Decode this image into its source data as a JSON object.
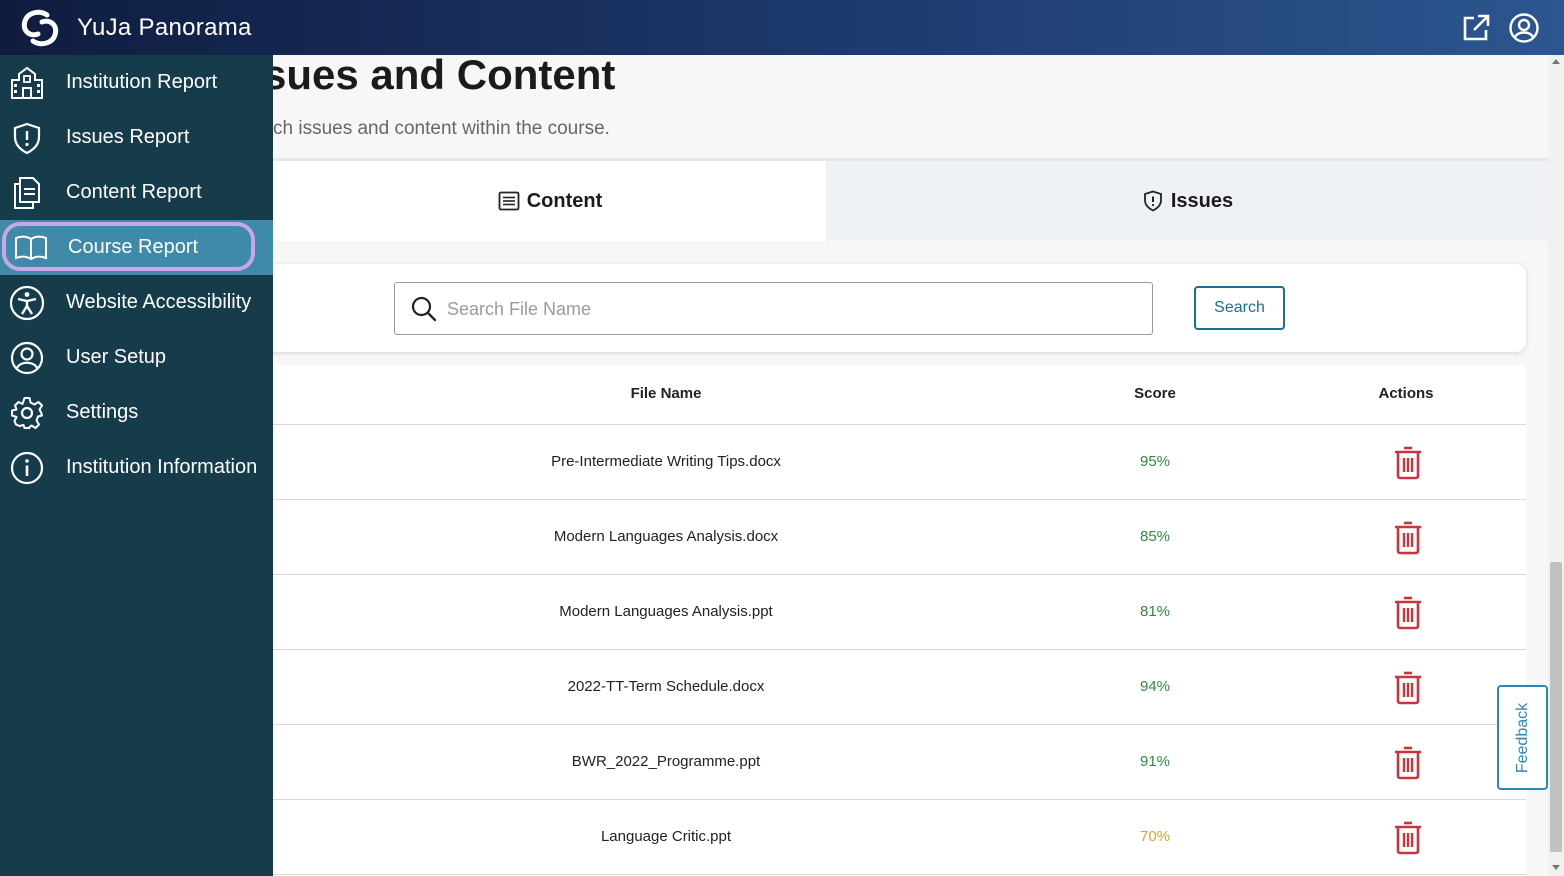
{
  "header": {
    "app_title": "YuJa Panorama",
    "logo_icon": "yuja-logo-icon",
    "external_link_icon": "external-link-icon",
    "account_icon": "user-circle-icon"
  },
  "sidebar": {
    "items": [
      {
        "label": "Institution Report",
        "icon": "building-icon"
      },
      {
        "label": "Issues Report",
        "icon": "shield-icon"
      },
      {
        "label": "Content Report",
        "icon": "documents-icon"
      },
      {
        "label": "Course Report",
        "icon": "book-icon",
        "active": true
      },
      {
        "label": "Website Accessibility",
        "icon": "accessibility-icon"
      },
      {
        "label": "User Setup",
        "icon": "user-circle-icon"
      },
      {
        "label": "Settings",
        "icon": "gear-icon"
      },
      {
        "label": "Institution Information",
        "icon": "info-icon"
      }
    ],
    "active_color": "#3f8aa8",
    "bg_color": "#163c4c"
  },
  "main": {
    "title": "sues and Content",
    "description": "ch issues and content within the course.",
    "tabs": [
      {
        "label": "Content",
        "icon": "list-icon",
        "selected": true
      },
      {
        "label": "Issues",
        "icon": "shield-icon",
        "selected": false
      }
    ],
    "search": {
      "placeholder": "Search File Name",
      "value": "",
      "button_label": "Search"
    },
    "table": {
      "columns": [
        "File Name",
        "Score",
        "Actions"
      ],
      "rows": [
        {
          "file_name": "Pre-Intermediate Writing Tips.docx",
          "score": "95%"
        },
        {
          "file_name": "Modern Languages Analysis.docx",
          "score": "85%"
        },
        {
          "file_name": "Modern Languages Analysis.ppt",
          "score": "81%"
        },
        {
          "file_name": "2022-TT-Term Schedule.docx",
          "score": "94%"
        },
        {
          "file_name": "BWR_2022_Programme.ppt",
          "score": "91%"
        },
        {
          "file_name": "Language Critic.ppt",
          "score": "70%"
        }
      ]
    }
  },
  "feedback": {
    "label": "Feedback"
  },
  "colors": {
    "score_good": "#2e8b3e",
    "score_mid": "#e0a22b",
    "delete": "#c9353a",
    "accent": "#1d6e94"
  }
}
